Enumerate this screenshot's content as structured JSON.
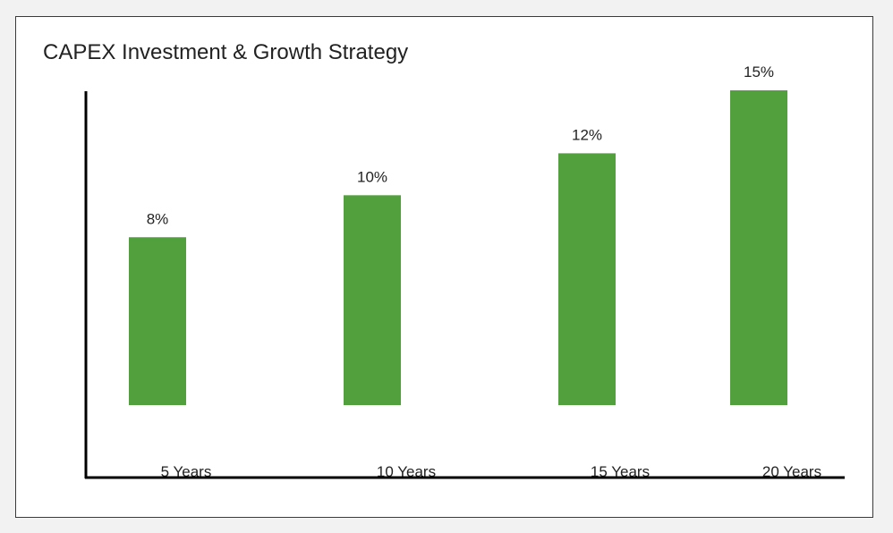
{
  "chart_data": {
    "type": "bar",
    "title": "CAPEX Investment & Growth Strategy",
    "categories": [
      "5 Years",
      "10 Years",
      "15 Years",
      "20 Years"
    ],
    "values": [
      8,
      10,
      12,
      15
    ],
    "value_labels": [
      "8%",
      "10%",
      "12%",
      "15%"
    ],
    "xlabel": "",
    "ylabel": "",
    "ylim": [
      0,
      15
    ],
    "grid": false,
    "legend": "none",
    "bar_color": "#529f3e",
    "axis_color": "#000000"
  }
}
